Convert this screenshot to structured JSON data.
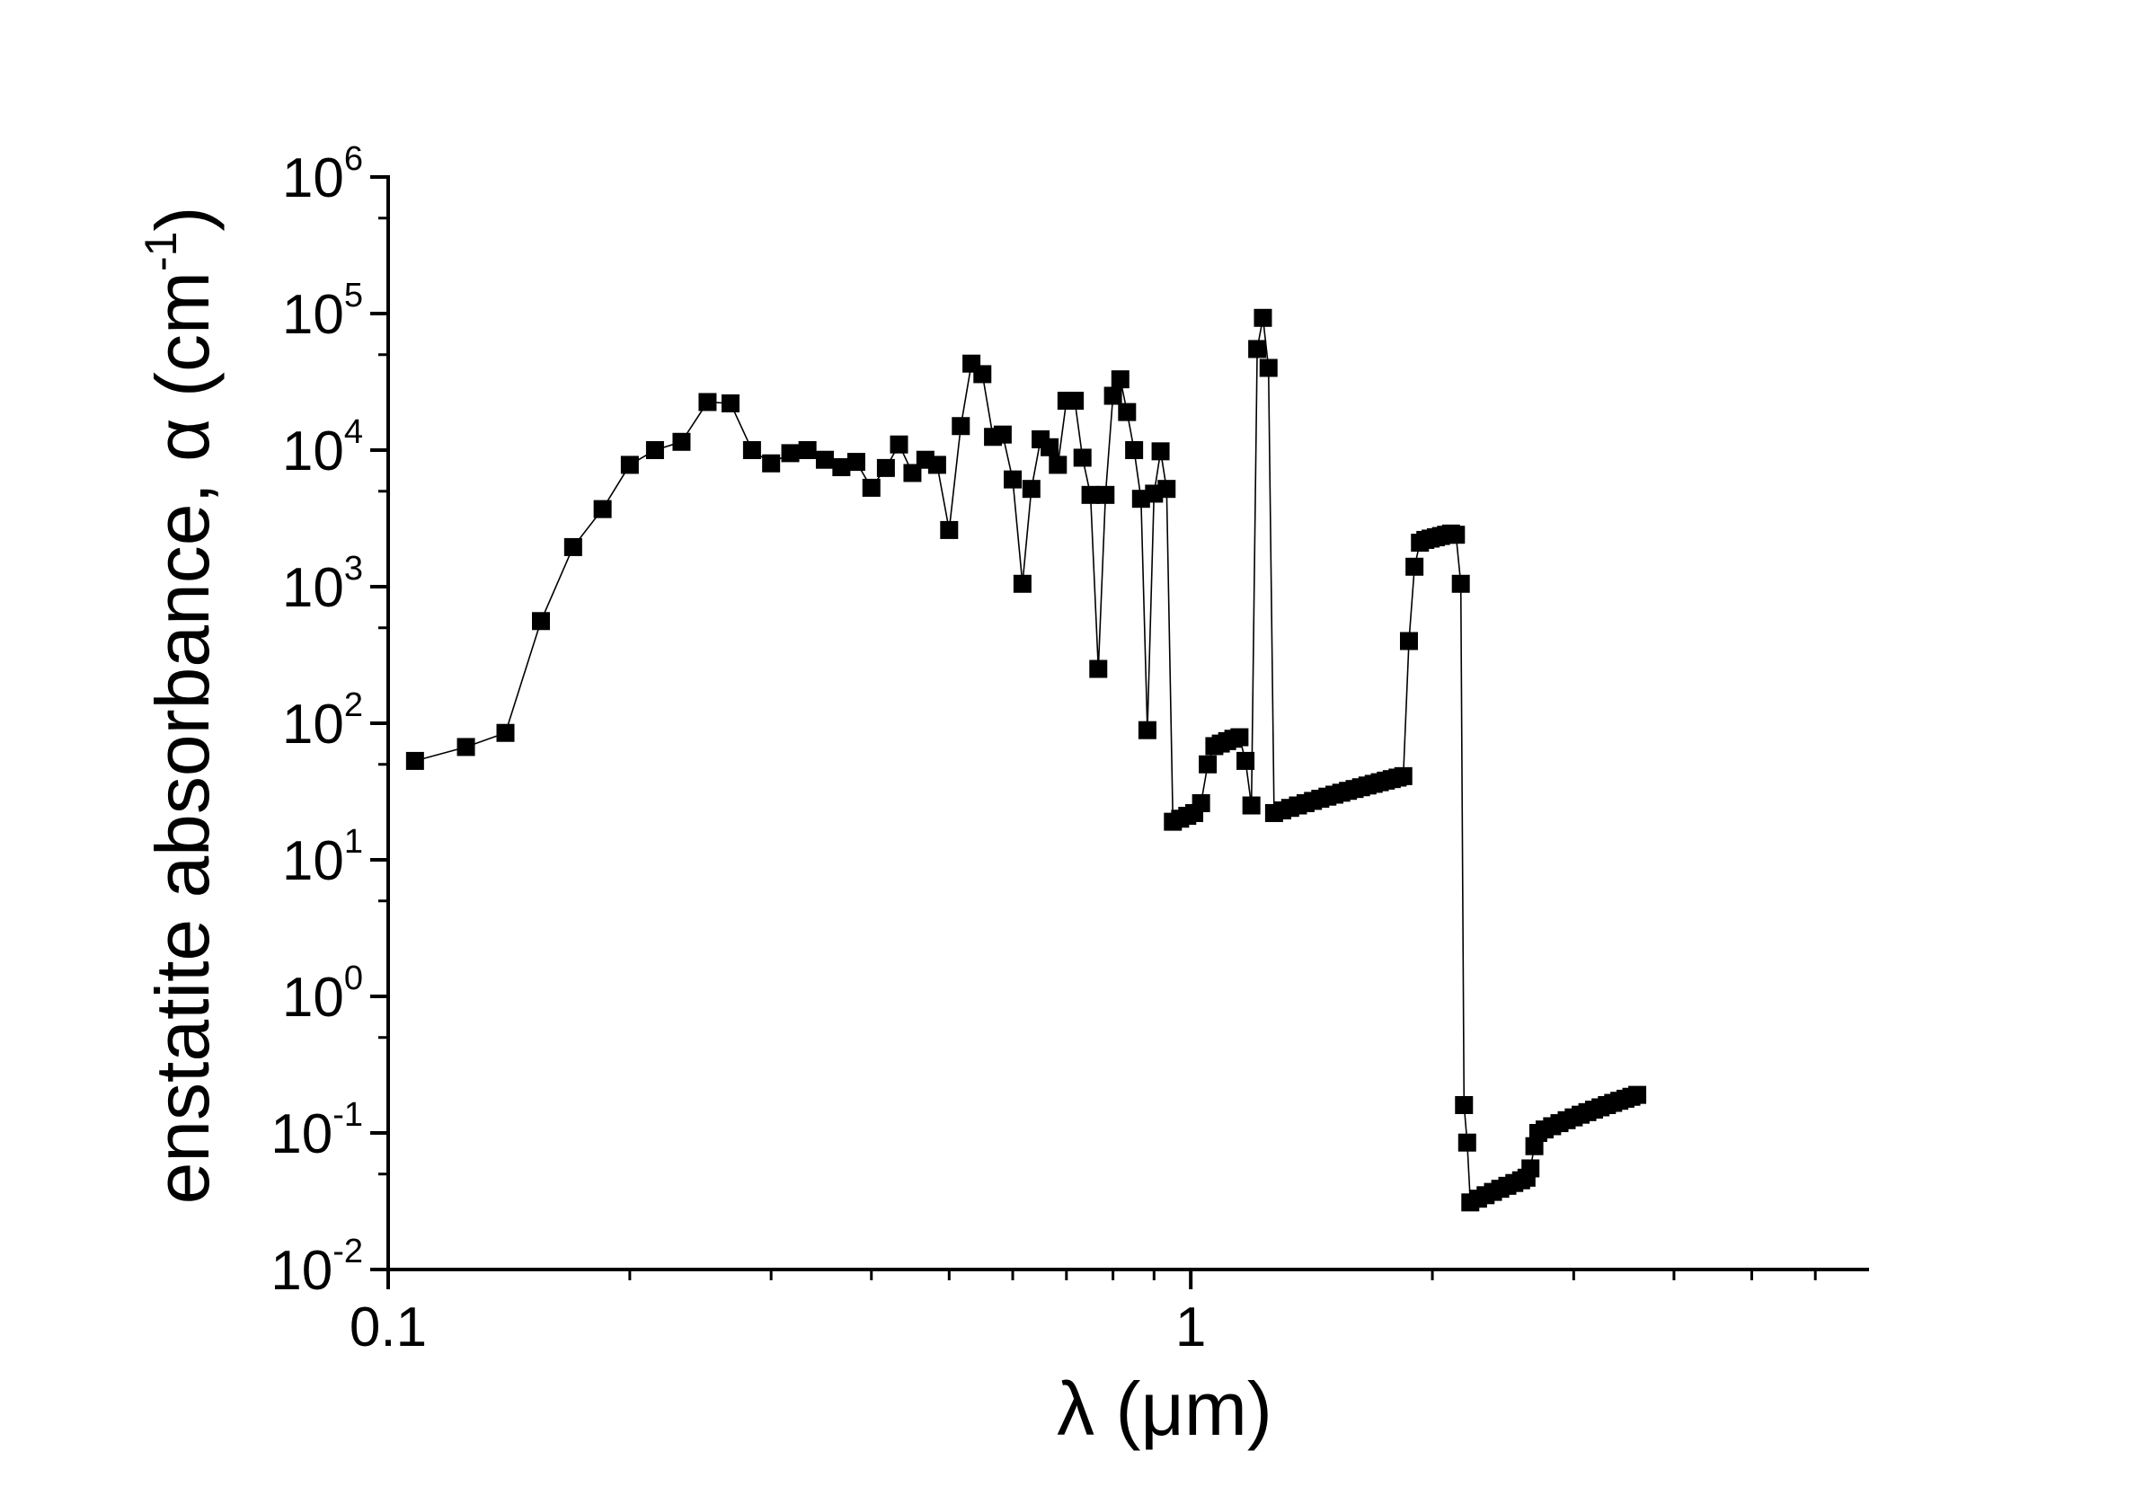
{
  "chart_data": {
    "type": "scatter",
    "xlabel": "λ (μm)",
    "ylabel": {
      "main": "enstatite absorbance, α (cm",
      "sup": "-1",
      "tail": ")"
    },
    "xscale": "log",
    "yscale": "log",
    "xlim": [
      0.1,
      7
    ],
    "ylim": [
      0.01,
      1000000
    ],
    "x_ticks": [
      {
        "value": 0.1,
        "label": "0.1"
      },
      {
        "value": 1,
        "label": "1"
      }
    ],
    "y_ticks": [
      {
        "value": 0.01,
        "base": "10",
        "exp": "-2"
      },
      {
        "value": 0.1,
        "base": "10",
        "exp": "-1"
      },
      {
        "value": 1,
        "base": "10",
        "exp": "0"
      },
      {
        "value": 10,
        "base": "10",
        "exp": "1"
      },
      {
        "value": 100,
        "base": "10",
        "exp": "2"
      },
      {
        "value": 1000,
        "base": "10",
        "exp": "3"
      },
      {
        "value": 10000,
        "base": "10",
        "exp": "4"
      },
      {
        "value": 100000,
        "base": "10",
        "exp": "5"
      },
      {
        "value": 1000000,
        "base": "10",
        "exp": "6"
      }
    ],
    "series": [
      {
        "marker": "square",
        "color": "#000000",
        "line": "connected",
        "points": [
          [
            0.108,
            53
          ],
          [
            0.125,
            67
          ],
          [
            0.14,
            85
          ],
          [
            0.155,
            560
          ],
          [
            0.17,
            1950
          ],
          [
            0.185,
            3700
          ],
          [
            0.2,
            7800
          ],
          [
            0.215,
            10000
          ],
          [
            0.232,
            11500
          ],
          [
            0.25,
            22500
          ],
          [
            0.267,
            22000
          ],
          [
            0.284,
            10000
          ],
          [
            0.3,
            8000
          ],
          [
            0.317,
            9500
          ],
          [
            0.333,
            10000
          ],
          [
            0.35,
            8500
          ],
          [
            0.367,
            7500
          ],
          [
            0.383,
            8200
          ],
          [
            0.4,
            5300
          ],
          [
            0.417,
            7400
          ],
          [
            0.433,
            11000
          ],
          [
            0.45,
            6800
          ],
          [
            0.467,
            8500
          ],
          [
            0.483,
            7800
          ],
          [
            0.5,
            2600
          ],
          [
            0.517,
            15000
          ],
          [
            0.533,
            43000
          ],
          [
            0.55,
            36000
          ],
          [
            0.567,
            12500
          ],
          [
            0.583,
            13000
          ],
          [
            0.6,
            6100
          ],
          [
            0.617,
            1050
          ],
          [
            0.633,
            5200
          ],
          [
            0.65,
            12000
          ],
          [
            0.667,
            10500
          ],
          [
            0.683,
            7800
          ],
          [
            0.7,
            23000
          ],
          [
            0.717,
            23000
          ],
          [
            0.733,
            8800
          ],
          [
            0.75,
            4700
          ],
          [
            0.767,
            250
          ],
          [
            0.783,
            4700
          ],
          [
            0.8,
            25000
          ],
          [
            0.817,
            33000
          ],
          [
            0.833,
            19000
          ],
          [
            0.85,
            10000
          ],
          [
            0.867,
            4400
          ],
          [
            0.883,
            89
          ],
          [
            0.9,
            4800
          ],
          [
            0.917,
            9800
          ],
          [
            0.933,
            5200
          ],
          [
            0.95,
            19
          ],
          [
            0.97,
            20
          ],
          [
            0.99,
            21
          ],
          [
            1.01,
            22
          ],
          [
            1.03,
            26
          ],
          [
            1.05,
            50
          ],
          [
            1.07,
            68
          ],
          [
            1.09,
            71
          ],
          [
            1.11,
            74
          ],
          [
            1.13,
            77
          ],
          [
            1.15,
            79
          ],
          [
            1.17,
            53
          ],
          [
            1.19,
            25
          ],
          [
            1.21,
            55000
          ],
          [
            1.23,
            93000
          ],
          [
            1.25,
            40000
          ],
          [
            1.27,
            22
          ],
          [
            1.3,
            23
          ],
          [
            1.33,
            24
          ],
          [
            1.36,
            25
          ],
          [
            1.39,
            26
          ],
          [
            1.42,
            27
          ],
          [
            1.45,
            28
          ],
          [
            1.48,
            29
          ],
          [
            1.51,
            30
          ],
          [
            1.54,
            31
          ],
          [
            1.57,
            32
          ],
          [
            1.6,
            33
          ],
          [
            1.63,
            34
          ],
          [
            1.66,
            35
          ],
          [
            1.69,
            36
          ],
          [
            1.72,
            37
          ],
          [
            1.75,
            38
          ],
          [
            1.78,
            39
          ],
          [
            1.81,
            40
          ],
          [
            1.84,
            41
          ],
          [
            1.87,
            400
          ],
          [
            1.9,
            1400
          ],
          [
            1.93,
            2100
          ],
          [
            1.96,
            2200
          ],
          [
            1.99,
            2250
          ],
          [
            2.02,
            2300
          ],
          [
            2.05,
            2350
          ],
          [
            2.08,
            2400
          ],
          [
            2.11,
            2450
          ],
          [
            2.14,
            2400
          ],
          [
            2.17,
            1050
          ],
          [
            2.19,
            0.16
          ],
          [
            2.21,
            0.085
          ],
          [
            2.23,
            0.031
          ],
          [
            2.28,
            0.033
          ],
          [
            2.33,
            0.035
          ],
          [
            2.38,
            0.037
          ],
          [
            2.43,
            0.039
          ],
          [
            2.48,
            0.041
          ],
          [
            2.53,
            0.043
          ],
          [
            2.58,
            0.045
          ],
          [
            2.62,
            0.047
          ],
          [
            2.65,
            0.055
          ],
          [
            2.68,
            0.08
          ],
          [
            2.71,
            0.1
          ],
          [
            2.76,
            0.106
          ],
          [
            2.82,
            0.112
          ],
          [
            2.88,
            0.118
          ],
          [
            2.94,
            0.124
          ],
          [
            3.0,
            0.13
          ],
          [
            3.06,
            0.136
          ],
          [
            3.12,
            0.142
          ],
          [
            3.18,
            0.148
          ],
          [
            3.24,
            0.154
          ],
          [
            3.3,
            0.16
          ],
          [
            3.36,
            0.166
          ],
          [
            3.42,
            0.172
          ],
          [
            3.48,
            0.178
          ],
          [
            3.54,
            0.184
          ],
          [
            3.6,
            0.19
          ]
        ]
      }
    ],
    "grid": false,
    "legend": "none"
  }
}
